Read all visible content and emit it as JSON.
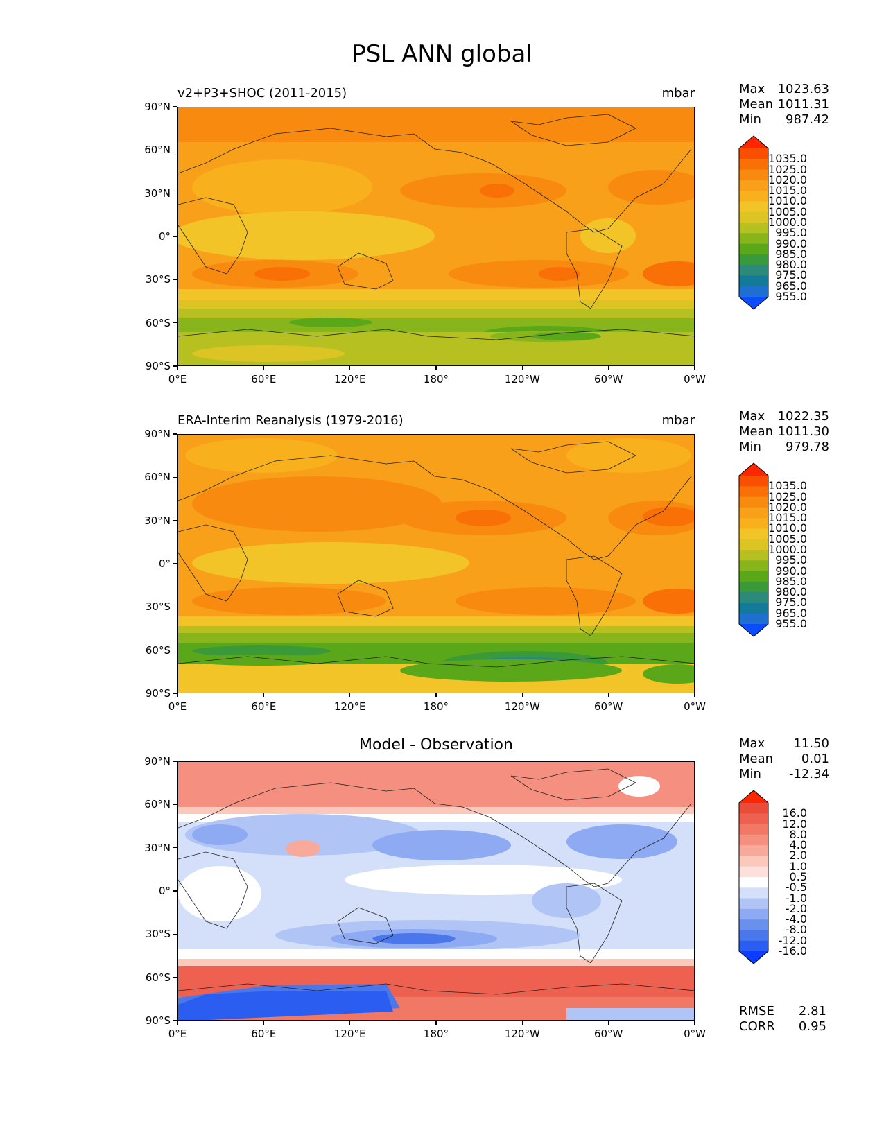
{
  "title": "PSL ANN global",
  "colors": {
    "psl": [
      "#0a4dff",
      "#1f6fd0",
      "#147a9a",
      "#2c8a7a",
      "#3a9a3a",
      "#5aa81a",
      "#88b41c",
      "#b6c020",
      "#dcc424",
      "#f2c428",
      "#f8b01c",
      "#f8a01a",
      "#f88a10",
      "#f87006",
      "#f85000",
      "#ff2600"
    ],
    "diff": [
      "#0a3dff",
      "#2a5df0",
      "#4a78ec",
      "#6a90ee",
      "#8eaaf2",
      "#b0c4f6",
      "#d4e0fa",
      "#ffffff",
      "#fde0dc",
      "#fbc8bc",
      "#f8aa9a",
      "#f59080",
      "#f27866",
      "#ee6050",
      "#ea4c3a",
      "#ff2600"
    ]
  },
  "panels": [
    {
      "id": "test",
      "label": "v2+P3+SHOC (2011-2015)",
      "units": "mbar",
      "stats": {
        "max_label": "Max",
        "max": "1023.63",
        "mean_label": "Mean",
        "mean": "1011.31",
        "min_label": "Min",
        "min": "987.42"
      },
      "colorbar_levels": [
        "1035.0",
        "1025.0",
        "1020.0",
        "1015.0",
        "1010.0",
        "1005.0",
        "1000.0",
        "995.0",
        "990.0",
        "985.0",
        "980.0",
        "975.0",
        "965.0",
        "955.0"
      ]
    },
    {
      "id": "ref",
      "label": "ERA-Interim Reanalysis (1979-2016)",
      "units": "mbar",
      "stats": {
        "max_label": "Max",
        "max": "1022.35",
        "mean_label": "Mean",
        "mean": "1011.30",
        "min_label": "Min",
        "min": "979.78"
      },
      "colorbar_levels": [
        "1035.0",
        "1025.0",
        "1020.0",
        "1015.0",
        "1010.0",
        "1005.0",
        "1000.0",
        "995.0",
        "990.0",
        "985.0",
        "980.0",
        "975.0",
        "965.0",
        "955.0"
      ]
    },
    {
      "id": "diff",
      "title": "Model - Observation",
      "stats": {
        "max_label": "Max",
        "max": "11.50",
        "mean_label": "Mean",
        "mean": "0.01",
        "min_label": "Min",
        "min": "-12.34"
      },
      "colorbar_levels": [
        "16.0",
        "12.0",
        "8.0",
        "4.0",
        "2.0",
        "1.0",
        "0.5",
        "-0.5",
        "-1.0",
        "-2.0",
        "-4.0",
        "-8.0",
        "-12.0",
        "-16.0"
      ],
      "rmse_label": "RMSE",
      "rmse": "2.81",
      "corr_label": "CORR",
      "corr": "0.95"
    }
  ],
  "axes": {
    "lat_ticks": [
      "90°N",
      "60°N",
      "30°N",
      "0°",
      "30°S",
      "60°S",
      "90°S"
    ],
    "lon_ticks": [
      "0°E",
      "60°E",
      "120°E",
      "180°",
      "120°W",
      "60°W",
      "0°W"
    ]
  }
}
